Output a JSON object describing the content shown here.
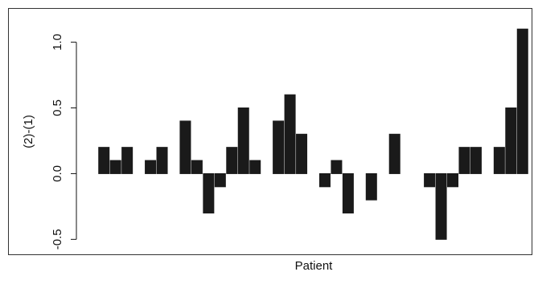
{
  "chart_data": {
    "type": "bar",
    "y_label": "(2)-(1)",
    "x_label": "Patient",
    "categories": [
      null,
      null,
      null,
      null,
      null,
      null,
      null,
      null,
      null,
      null,
      null,
      null,
      null,
      null,
      null,
      null,
      null,
      null,
      null,
      null,
      null,
      null,
      null,
      null,
      null,
      null,
      null,
      null,
      null,
      null,
      null,
      null,
      null,
      null,
      null,
      null,
      null
    ],
    "values": [
      0.2,
      0.1,
      0.2,
      0,
      0.1,
      0.2,
      0,
      0.4,
      0.1,
      -0.3,
      -0.1,
      0.2,
      0.5,
      0.1,
      0,
      0.4,
      0.6,
      0.3,
      0,
      -0.1,
      0.1,
      -0.3,
      0,
      -0.2,
      0,
      0.3,
      0,
      0,
      -0.1,
      -0.5,
      -0.1,
      0.2,
      0.2,
      0,
      0.2,
      0.5,
      1.1
    ],
    "color": "#1a1a1a",
    "ylim": [
      -0.62,
      1.26
    ],
    "yticks": [
      -0.5,
      {
        "value": 0,
        "label": "0.0"
      },
      0.5,
      {
        "value": 1,
        "label": "1.0"
      }
    ]
  }
}
